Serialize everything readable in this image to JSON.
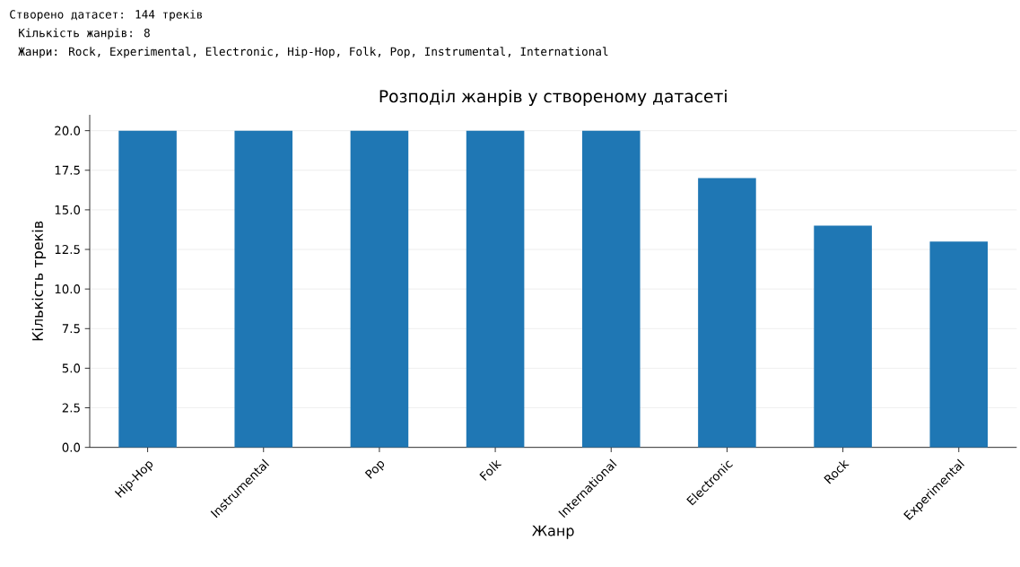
{
  "chart_data": {
    "type": "bar",
    "title": "Розподіл жанрів у створеному датасеті",
    "xlabel": "Жанр",
    "ylabel": "Кількість треків",
    "categories": [
      "Hip-Hop",
      "Instrumental",
      "Pop",
      "Folk",
      "International",
      "Electronic",
      "Rock",
      "Experimental"
    ],
    "values": [
      20,
      20,
      20,
      20,
      20,
      17,
      14,
      13
    ],
    "color": "#1f77b4",
    "ylim": [
      0,
      21
    ],
    "yticks": [
      {
        "value": 0,
        "label": "0.0"
      },
      {
        "value": 2.5,
        "label": "2.5"
      },
      {
        "value": 5,
        "label": "5.0"
      },
      {
        "value": 7.5,
        "label": "7.5"
      },
      {
        "value": 10,
        "label": "10.0"
      },
      {
        "value": 12.5,
        "label": "12.5"
      },
      {
        "value": 15,
        "label": "15.0"
      },
      {
        "value": 17.5,
        "label": "17.5"
      },
      {
        "value": 20,
        "label": "20.0"
      }
    ],
    "grid": "y",
    "annotations": [
      "Створено датасет: 144 треків",
      "Кількість жанрів: 8",
      "Жанри: Rock, Experimental, Electronic, Hip-Hop, Folk, Pop, Instrumental, International"
    ]
  }
}
